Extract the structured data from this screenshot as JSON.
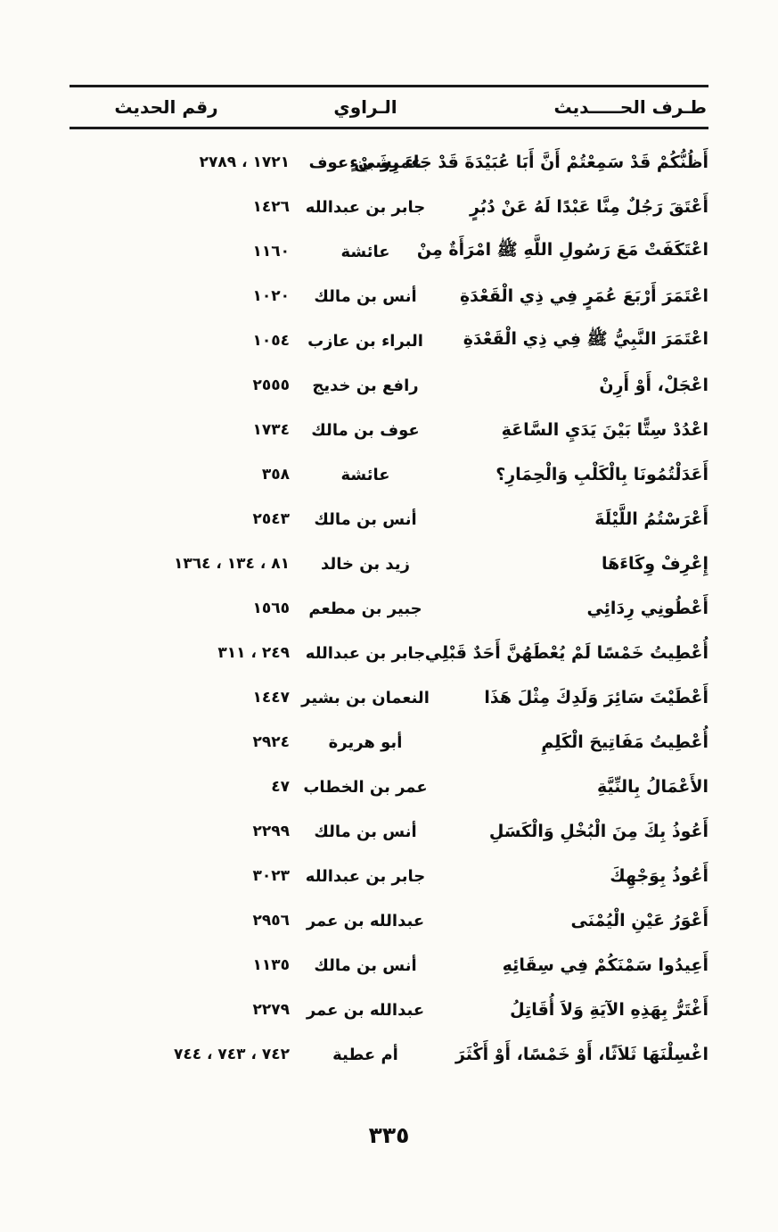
{
  "page": {
    "number": "٣٣٥"
  },
  "table": {
    "headers": {
      "hadith": "طـرف الحـــــديث",
      "narrator": "الـراوي",
      "number": "رقم الحديث"
    },
    "rows": [
      {
        "hadith": "أَظُنُّكُمْ قَدْ سَمِعْتُمْ أَنَّ أَبَا عُبَيْدَةَ قَدْ جَاءَ بِشَيْءٍ",
        "narrator": "عمرو بن عوف",
        "number": "١٧٢١ ، ٢٧٨٩"
      },
      {
        "hadith": "أَعْتَقَ رَجُلٌ مِنَّا عَبْدًا لَهُ عَنْ دُبُرٍ",
        "narrator": "جابر بن عبدالله",
        "number": "١٤٢٦"
      },
      {
        "hadith": "اعْتَكَفَتْ مَعَ رَسُولِ اللَّهِ ﷺ امْرَأَةٌ مِنْ",
        "narrator": "عائشة",
        "number": "١١٦٠"
      },
      {
        "hadith": "اعْتَمَرَ أَرْبَعَ عُمَرٍ فِي ذِي الْقَعْدَةِ",
        "narrator": "أنس بن مالك",
        "number": "١٠٢٠"
      },
      {
        "hadith": "اعْتَمَرَ النَّبِيُّ ﷺ فِي ذِي الْقَعْدَةِ",
        "narrator": "البراء بن عازب",
        "number": "١٠٥٤"
      },
      {
        "hadith": "اعْجَلْ، أَوْ أَرِنْ",
        "narrator": "رافع بن خديج",
        "number": "٢٥٥٥"
      },
      {
        "hadith": "اعْدُدْ سِتًّا بَيْنَ يَدَيِ السَّاعَةِ",
        "narrator": "عوف بن مالك",
        "number": "١٧٣٤"
      },
      {
        "hadith": "أَعَدَلْتُمُونَا بِالْكَلْبِ وَالْحِمَارِ؟",
        "narrator": "عائشة",
        "number": "٣٥٨"
      },
      {
        "hadith": "أَعْرَسْتُمُ اللَّيْلَةَ",
        "narrator": "أنس بن مالك",
        "number": "٢٥٤٣"
      },
      {
        "hadith": "إِعْرِفْ وِكَاءَهَا",
        "narrator": "زيد بن خالد",
        "number": "٨١ ، ١٣٤ ، ١٣٦٤"
      },
      {
        "hadith": "أَعْطُونِي رِدَائِي",
        "narrator": "جبير بن مطعم",
        "number": "١٥٦٥"
      },
      {
        "hadith": "أُعْطِيتُ خَمْسًا لَمْ يُعْطَهُنَّ أَحَدٌ قَبْلِي",
        "narrator": "جابر بن عبدالله",
        "number": "٢٤٩ ، ٣١١"
      },
      {
        "hadith": "أَعْطَيْتَ سَائِرَ وَلَدِكَ مِثْلَ هَذَا",
        "narrator": "النعمان بن بشير",
        "number": "١٤٤٧"
      },
      {
        "hadith": "أُعْطِيتُ مَفَاتِيحَ الْكَلِمِ",
        "narrator": "أبو هريرة",
        "number": "٢٩٢٤"
      },
      {
        "hadith": "الأَعْمَالُ بِالنِّيَّةِ",
        "narrator": "عمر بن الخطاب",
        "number": "٤٧"
      },
      {
        "hadith": "أَعُوذُ بِكَ مِنَ الْبُخْلِ وَالْكَسَلِ",
        "narrator": "أنس بن مالك",
        "number": "٢٢٩٩"
      },
      {
        "hadith": "أَعُوذُ بِوَجْهِكَ",
        "narrator": "جابر بن عبدالله",
        "number": "٣٠٢٣"
      },
      {
        "hadith": "أَعْوَرُ عَيْنِ الْيُمْنَى",
        "narrator": "عبدالله بن عمر",
        "number": "٢٩٥٦"
      },
      {
        "hadith": "أَعِيدُوا سَمْنَكُمْ فِي سِقَائِهِ",
        "narrator": "أنس بن مالك",
        "number": "١١٣٥"
      },
      {
        "hadith": "أَغْتَرُّ بِهَذِهِ الآيَةِ وَلاَ أُقَاتِلُ",
        "narrator": "عبدالله بن عمر",
        "number": "٢٢٧٩"
      },
      {
        "hadith": "اغْسِلْنَهَا ثَلاَثًا، أَوْ خَمْسًا، أَوْ أَكْثَرَ",
        "narrator": "أم عطية",
        "number": "٧٤٢ ، ٧٤٣ ، ٧٤٤"
      }
    ]
  }
}
